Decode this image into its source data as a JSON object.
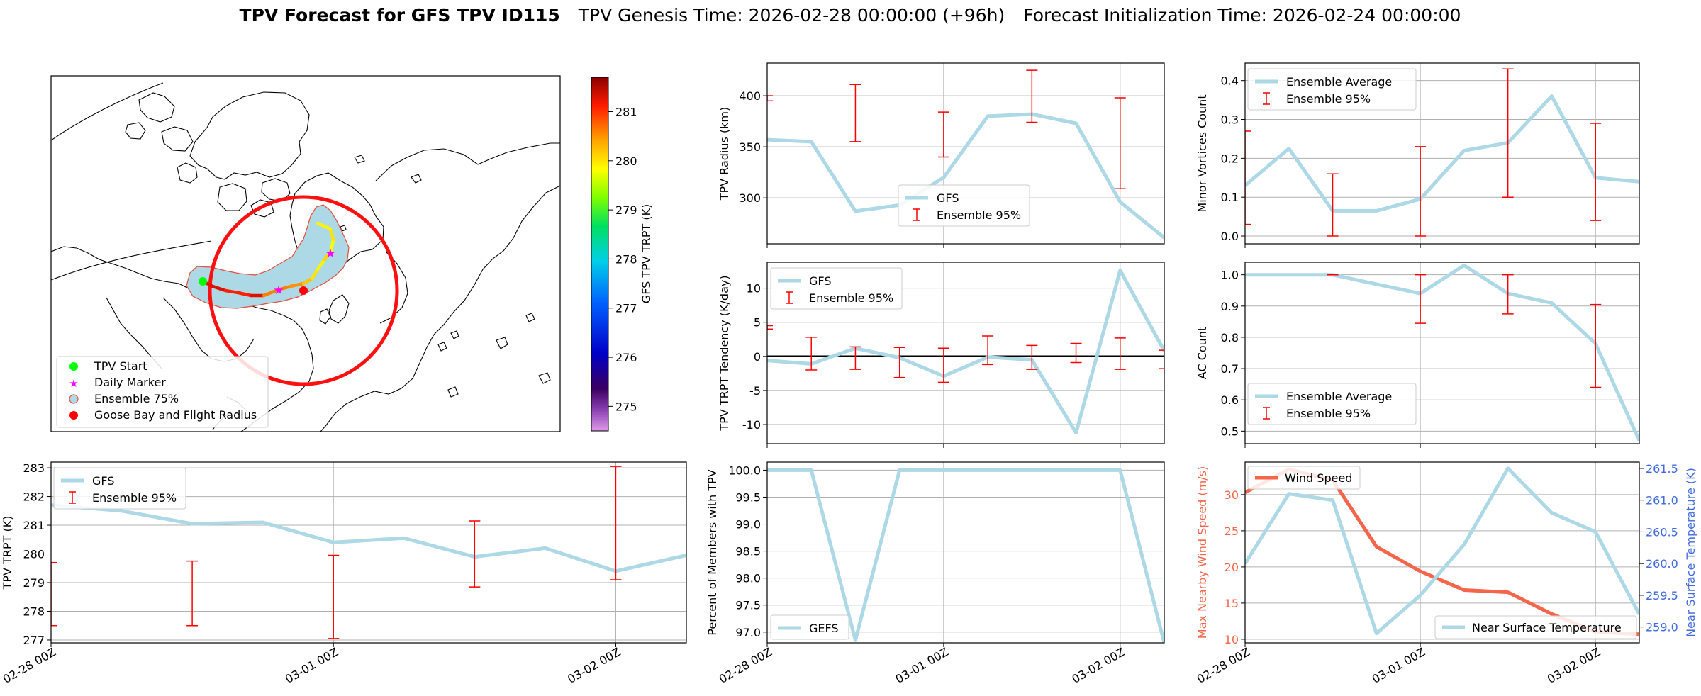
{
  "title": {
    "bold": "TPV Forecast for GFS TPV ID115",
    "genesis": "TPV Genesis Time: 2026-02-28 00:00:00 (+96h)",
    "init": "Forecast Initialization Time: 2026-02-24 00:00:00"
  },
  "colors": {
    "gfs": "#add8e6",
    "ensemble": "#ff0000",
    "wind": "#f4654a",
    "temp_axis": "#4169e1",
    "start": "#00ff00",
    "marker": "#ff00ff",
    "ellipse_fill": "#add8e6",
    "coast": "#000000",
    "grid": "#b0b0b0"
  },
  "map": {
    "legend": [
      "TPV Start",
      "Daily Marker",
      "Ensemble 75%",
      "Goose Bay and Flight Radius"
    ],
    "colorbar": {
      "label": "GFS TPV TRPT (K)",
      "ticks": [
        275,
        276,
        277,
        278,
        279,
        280,
        281
      ],
      "min": 274.5,
      "max": 281.7
    },
    "track_trpt": [
      281.3,
      281.3,
      281.1,
      281.1,
      281.3,
      280.6,
      280.6,
      280.5,
      280.2,
      280.0,
      279.9,
      280.1,
      279.8,
      280.0,
      279.9
    ]
  },
  "chart_data": [
    {
      "id": "trpt",
      "type": "line",
      "ylabel": "TPV TRPT (K)",
      "xticks": [
        "02-28 00Z",
        "03-01 00Z",
        "03-02 00Z"
      ],
      "xlim": [
        0,
        2.25
      ],
      "ylim": [
        276.9,
        283.2
      ],
      "yticks": [
        277,
        278,
        279,
        280,
        281,
        282,
        283
      ],
      "legend": [
        "GFS",
        "Ensemble 95%"
      ],
      "x": [
        0,
        0.25,
        0.5,
        0.75,
        1.0,
        1.25,
        1.5,
        1.75,
        2.0,
        2.25
      ],
      "series": [
        {
          "name": "GFS",
          "values": [
            281.7,
            281.5,
            281.05,
            281.1,
            280.4,
            280.55,
            279.9,
            280.2,
            279.4,
            279.95
          ]
        }
      ],
      "errorbars": [
        {
          "x": 0,
          "low": 277.5,
          "high": 279.7
        },
        {
          "x": 0.5,
          "low": 277.5,
          "high": 279.75
        },
        {
          "x": 1.0,
          "low": 277.05,
          "high": 279.95
        },
        {
          "x": 1.5,
          "low": 278.85,
          "high": 281.15
        },
        {
          "x": 2.0,
          "low": 279.1,
          "high": 283.05
        }
      ]
    },
    {
      "id": "radius",
      "type": "line",
      "ylabel": "TPV Radius (km)",
      "xlim": [
        0,
        2.25
      ],
      "ylim": [
        255,
        432
      ],
      "yticks": [
        300,
        350,
        400
      ],
      "legend": [
        "GFS",
        "Ensemble 95%"
      ],
      "x": [
        0,
        0.25,
        0.5,
        0.75,
        1.0,
        1.25,
        1.5,
        1.75,
        2.0,
        2.25
      ],
      "series": [
        {
          "name": "GFS",
          "values": [
            357,
            355,
            287,
            293,
            320,
            380,
            382,
            373,
            296,
            261
          ]
        }
      ],
      "errorbars": [
        {
          "x": 0,
          "low": 395,
          "high": 400
        },
        {
          "x": 0.5,
          "low": 355,
          "high": 411
        },
        {
          "x": 1.0,
          "low": 340,
          "high": 384
        },
        {
          "x": 1.5,
          "low": 374,
          "high": 425
        },
        {
          "x": 2.0,
          "low": 309,
          "high": 398
        }
      ]
    },
    {
      "id": "tendency",
      "type": "line",
      "ylabel": "TPV TRPT Tendency (K/day)",
      "xlim": [
        0,
        2.25
      ],
      "ylim": [
        -12.8,
        13.8
      ],
      "yticks": [
        -10,
        -5,
        0,
        5,
        10
      ],
      "legend": [
        "GFS",
        "Ensemble 95%"
      ],
      "x": [
        0,
        0.25,
        0.5,
        0.75,
        1.0,
        1.25,
        1.5,
        1.75,
        2.0,
        2.25
      ],
      "series": [
        {
          "name": "GFS",
          "values": [
            -0.6,
            -1.1,
            1.2,
            -0.2,
            -2.9,
            -0.1,
            -0.5,
            -11.2,
            12.6,
            0.8
          ]
        }
      ],
      "errorbars": [
        {
          "x": 0,
          "low": 4.0,
          "high": 4.5
        },
        {
          "x": 0.25,
          "low": -2.0,
          "high": 2.8
        },
        {
          "x": 0.5,
          "low": -1.9,
          "high": 1.4
        },
        {
          "x": 0.75,
          "low": -3.1,
          "high": 1.3
        },
        {
          "x": 1.0,
          "low": -3.8,
          "high": 1.2
        },
        {
          "x": 1.25,
          "low": -1.2,
          "high": 3.0
        },
        {
          "x": 1.5,
          "low": -1.9,
          "high": 1.6
        },
        {
          "x": 1.75,
          "low": -0.9,
          "high": 1.9
        },
        {
          "x": 2.0,
          "low": -1.9,
          "high": 2.7
        },
        {
          "x": 2.25,
          "low": -1.8,
          "high": 0.9
        }
      ],
      "zero_line": 0
    },
    {
      "id": "members",
      "type": "line",
      "ylabel": "Percent of Members with TPV",
      "xticks": [
        "02-28 00Z",
        "03-01 00Z",
        "03-02 00Z"
      ],
      "xlim": [
        0,
        2.25
      ],
      "ylim": [
        96.8,
        100.15
      ],
      "yticks": [
        97.0,
        97.5,
        98.0,
        98.5,
        99.0,
        99.5,
        100.0
      ],
      "legend": [
        "GEFS"
      ],
      "x": [
        0,
        0.25,
        0.5,
        0.75,
        1.0,
        1.25,
        1.5,
        1.75,
        2.0,
        2.25
      ],
      "series": [
        {
          "name": "GEFS",
          "values": [
            100,
            100,
            96.85,
            100,
            100,
            100,
            100,
            100,
            100,
            96.8
          ]
        }
      ]
    },
    {
      "id": "minor",
      "type": "line",
      "ylabel": "Minor Vortices Count",
      "xlim": [
        0,
        2.25
      ],
      "ylim": [
        -0.02,
        0.445
      ],
      "yticks": [
        0.0,
        0.1,
        0.2,
        0.3,
        0.4
      ],
      "legend": [
        "Ensemble Average",
        "Ensemble 95%"
      ],
      "x": [
        0,
        0.25,
        0.5,
        0.75,
        1.0,
        1.25,
        1.5,
        1.75,
        2.0,
        2.25
      ],
      "series": [
        {
          "name": "Ensemble Average",
          "values": [
            0.13,
            0.225,
            0.065,
            0.065,
            0.095,
            0.22,
            0.24,
            0.36,
            0.15,
            0.14
          ]
        }
      ],
      "errorbars": [
        {
          "x": 0,
          "low": 0.03,
          "high": 0.27
        },
        {
          "x": 0.5,
          "low": 0.0,
          "high": 0.16
        },
        {
          "x": 1.0,
          "low": 0.0,
          "high": 0.23
        },
        {
          "x": 1.5,
          "low": 0.1,
          "high": 0.43
        },
        {
          "x": 2.0,
          "low": 0.04,
          "high": 0.29
        }
      ]
    },
    {
      "id": "ac",
      "type": "line",
      "ylabel": "AC Count",
      "xlim": [
        0,
        2.25
      ],
      "ylim": [
        0.46,
        1.04
      ],
      "yticks": [
        0.5,
        0.6,
        0.7,
        0.8,
        0.9,
        1.0
      ],
      "legend": [
        "Ensemble Average",
        "Ensemble 95%"
      ],
      "x": [
        0,
        0.25,
        0.5,
        0.75,
        1.0,
        1.25,
        1.5,
        1.75,
        2.0,
        2.25
      ],
      "series": [
        {
          "name": "Ensemble Average",
          "values": [
            1.0,
            1.0,
            1.0,
            0.97,
            0.94,
            1.03,
            0.94,
            0.91,
            0.78,
            0.47
          ]
        }
      ],
      "errorbars": [
        {
          "x": 0.5,
          "low": 1.0,
          "high": 1.0
        },
        {
          "x": 1.0,
          "low": 0.845,
          "high": 1.0
        },
        {
          "x": 1.5,
          "low": 0.875,
          "high": 1.0
        },
        {
          "x": 2.0,
          "low": 0.64,
          "high": 0.905
        }
      ]
    },
    {
      "id": "wind_temp",
      "type": "line",
      "ylabel": "Max Nearby Wind Speed (m/s)",
      "y2label": "Near Surface Temperature (K)",
      "xticks": [
        "02-28 00Z",
        "03-01 00Z",
        "03-02 00Z"
      ],
      "xlim": [
        0,
        2.25
      ],
      "ylim": [
        9.5,
        34.5
      ],
      "yticks": [
        10,
        15,
        20,
        25,
        30
      ],
      "y2lim": [
        258.75,
        261.6
      ],
      "y2ticks": [
        259.0,
        259.5,
        260.0,
        260.5,
        261.0,
        261.5
      ],
      "legend": [
        "Wind Speed",
        "Near Surface Temperature"
      ],
      "x": [
        0,
        0.25,
        0.5,
        0.75,
        1.0,
        1.25,
        1.5,
        1.75,
        2.0,
        2.25
      ],
      "series": [
        {
          "name": "Wind Speed",
          "axis": "left",
          "values": [
            30.3,
            33.5,
            32.0,
            22.8,
            19.4,
            16.8,
            16.5,
            13.5,
            11.0,
            10.7
          ]
        },
        {
          "name": "Near Surface Temperature",
          "axis": "right",
          "values": [
            260.0,
            261.1,
            261.0,
            258.9,
            259.5,
            260.3,
            261.5,
            260.8,
            260.5,
            259.2
          ]
        }
      ]
    }
  ]
}
